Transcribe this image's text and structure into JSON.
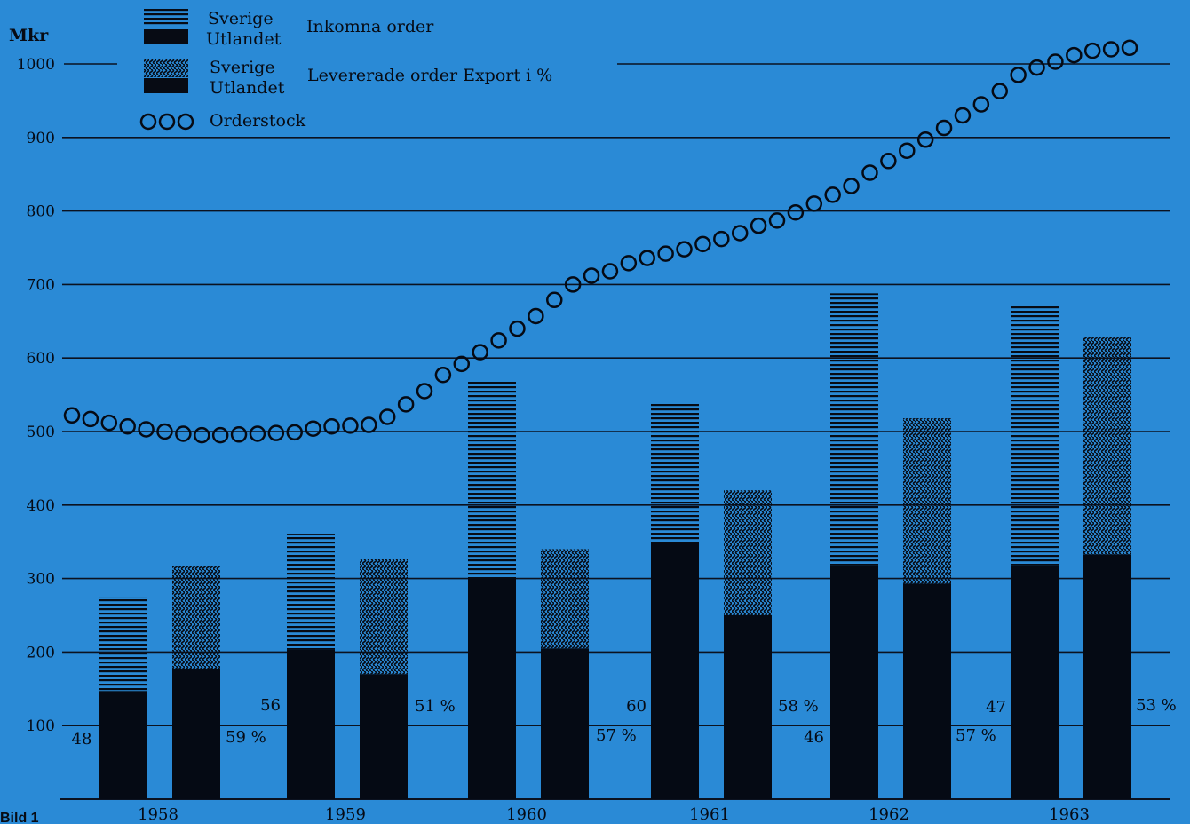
{
  "figure_label": "Bild 1",
  "chart_data": {
    "type": "bar",
    "ylabel": "Mkr",
    "ylim": [
      0,
      1000
    ],
    "yticks": [
      "100",
      "200",
      "300",
      "400",
      "500",
      "600",
      "700",
      "800",
      "900",
      "1000"
    ],
    "years": [
      "1958",
      "1959",
      "1960",
      "1961",
      "1962",
      "1963"
    ],
    "legend": {
      "sverige": "Sverige",
      "utlandet": "Utlandet",
      "incoming": "Inkomna order",
      "delivered": "Levererade order Export i %",
      "stock": "Orderstock"
    },
    "series": [
      {
        "name": "Inkomna order",
        "sverige": [
          128,
          158,
          268,
          190,
          370,
          355
        ],
        "utlandet": [
          147,
          203,
          300,
          348,
          318,
          318
        ],
        "export_pct": [
          "48",
          "56",
          "60",
          "",
          "46",
          "47"
        ]
      },
      {
        "name": "Levererade order",
        "sverige": [
          140,
          157,
          135,
          170,
          225,
          295
        ],
        "utlandet": [
          177,
          170,
          205,
          250,
          293,
          333
        ],
        "export_pct": [
          "59 %",
          "51 %",
          "57 %",
          "58 %",
          "57 %",
          "53 %"
        ]
      }
    ],
    "orderstock": [
      522,
      517,
      512,
      507,
      503,
      500,
      497,
      495,
      495,
      496,
      497,
      498,
      499,
      504,
      507,
      508,
      509,
      520,
      537,
      555,
      577,
      592,
      608,
      624,
      640,
      657,
      679,
      700,
      712,
      718,
      729,
      736,
      742,
      748,
      755,
      762,
      770,
      780,
      787,
      798,
      810,
      822,
      834,
      852,
      868,
      882,
      897,
      913,
      930,
      945,
      963,
      985,
      995,
      1003,
      1012,
      1018,
      1020,
      1022
    ]
  },
  "colors": {
    "background": "#2a8ad6",
    "ink": "#050a14",
    "grid": "#0b1220"
  }
}
